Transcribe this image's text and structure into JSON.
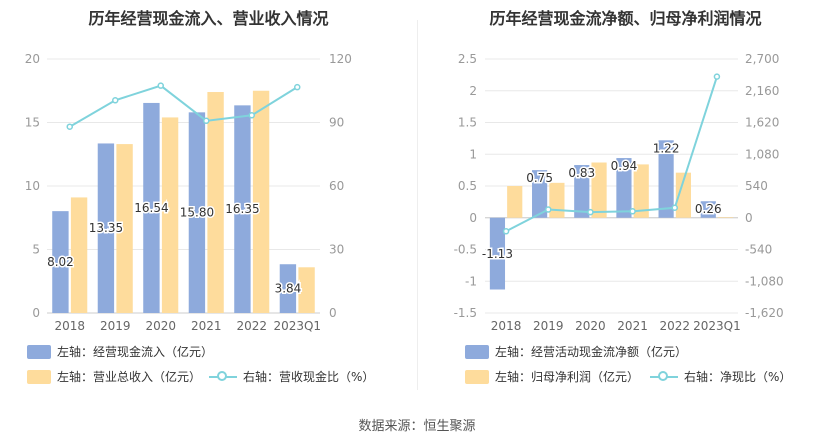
{
  "colors": {
    "blue": "#8eaadc",
    "orange": "#fedc9c",
    "line": "#7fd3dc",
    "grid": "#e8e8e8",
    "axis_text": "#999999"
  },
  "chart_data": [
    {
      "type": "bar",
      "title": "历年经营现金流入、营业收入情况",
      "categories": [
        "2018",
        "2019",
        "2020",
        "2021",
        "2022",
        "2023Q1"
      ],
      "left_axis": {
        "ylim": [
          0,
          20
        ],
        "ticks": [
          "0",
          "5",
          "10",
          "15",
          "20"
        ],
        "tick_values": [
          0,
          5,
          10,
          15,
          20
        ]
      },
      "right_axis": {
        "ylim": [
          0,
          120
        ],
        "ticks": [
          "0",
          "30",
          "60",
          "90",
          "120"
        ],
        "tick_values": [
          0,
          30,
          60,
          90,
          120
        ]
      },
      "series": [
        {
          "name": "左轴：经营现金流入（亿元）",
          "axis": "left",
          "kind": "bar",
          "color": "#8eaadc",
          "values": [
            8.02,
            13.35,
            16.54,
            15.8,
            16.35,
            3.84
          ],
          "labels": [
            "8.02",
            "13.35",
            "16.54",
            "15.80",
            "16.35",
            "3.84"
          ]
        },
        {
          "name": "左轴：营业总收入（亿元）",
          "axis": "left",
          "kind": "bar",
          "color": "#fedc9c",
          "values": [
            9.1,
            13.3,
            15.4,
            17.4,
            17.5,
            3.6
          ]
        },
        {
          "name": "右轴：营收现金比（%）",
          "axis": "right",
          "kind": "line",
          "color": "#7fd3dc",
          "values": [
            88,
            100.5,
            107.4,
            90.8,
            93.4,
            106.7
          ]
        }
      ]
    },
    {
      "type": "bar",
      "title": "历年经营现金流净额、归母净利润情况",
      "categories": [
        "2018",
        "2019",
        "2020",
        "2021",
        "2022",
        "2023Q1"
      ],
      "left_axis": {
        "ylim": [
          -1.5,
          2.5
        ],
        "ticks": [
          "-1.5",
          "-1",
          "-0.5",
          "0",
          "0.5",
          "1",
          "1.5",
          "2",
          "2.5"
        ],
        "tick_values": [
          -1.5,
          -1,
          -0.5,
          0,
          0.5,
          1,
          1.5,
          2,
          2.5
        ]
      },
      "right_axis": {
        "ylim": [
          -1620,
          2700
        ],
        "ticks": [
          "-1,620",
          "-1,080",
          "-540",
          "0",
          "540",
          "1,080",
          "1,620",
          "2,160",
          "2,700"
        ],
        "tick_values": [
          -1620,
          -1080,
          -540,
          0,
          540,
          1080,
          1620,
          2160,
          2700
        ]
      },
      "series": [
        {
          "name": "左轴：经营活动现金流净额（亿元）",
          "axis": "left",
          "kind": "bar",
          "color": "#8eaadc",
          "values": [
            -1.13,
            0.75,
            0.83,
            0.94,
            1.22,
            0.26
          ],
          "labels": [
            "-1.13",
            "0.75",
            "0.83",
            "0.94",
            "1.22",
            "0.26"
          ]
        },
        {
          "name": "左轴：归母净利润（亿元）",
          "axis": "left",
          "kind": "bar",
          "color": "#fedc9c",
          "values": [
            0.5,
            0.55,
            0.87,
            0.84,
            0.71,
            0.01
          ]
        },
        {
          "name": "右轴：净现比（%）",
          "axis": "right",
          "kind": "line",
          "color": "#7fd3dc",
          "values": [
            -230,
            140,
            95,
            110,
            170,
            2400
          ]
        }
      ]
    }
  ],
  "source": "数据来源：恒生聚源"
}
